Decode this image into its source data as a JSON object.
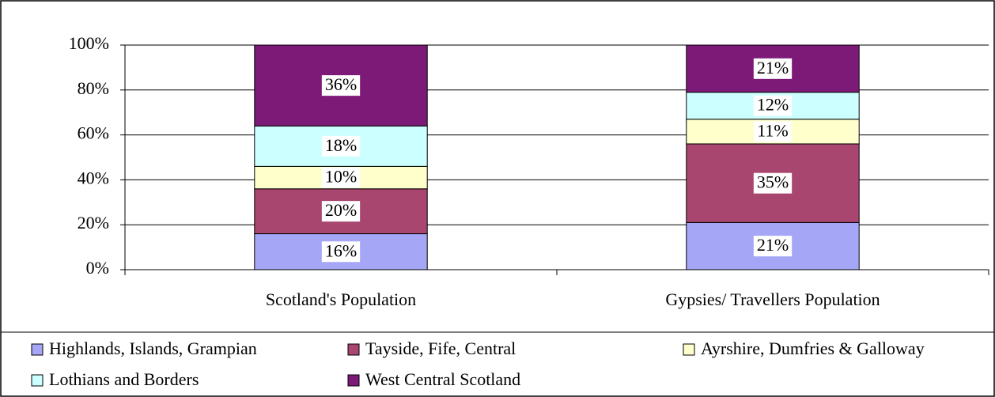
{
  "chart_data": {
    "type": "stacked_bar",
    "categories": [
      "Scotland's Population",
      "Gypsies/ Travellers Population"
    ],
    "series": [
      {
        "name": "Highlands, Islands, Grampian",
        "color": "#a6a6f7",
        "values": [
          16,
          21
        ],
        "value_labels": [
          "16%",
          "21%"
        ]
      },
      {
        "name": "Tayside, Fife, Central",
        "color": "#a84670",
        "values": [
          20,
          35
        ],
        "value_labels": [
          "20%",
          "35%"
        ]
      },
      {
        "name": "Ayrshire, Dumfries & Galloway",
        "color": "#ffffcc",
        "values": [
          10,
          11
        ],
        "value_labels": [
          "10%",
          "11%"
        ]
      },
      {
        "name": "Lothians and Borders",
        "color": "#ccffff",
        "values": [
          18,
          12
        ],
        "value_labels": [
          "18%",
          "12%"
        ]
      },
      {
        "name": "West Central Scotland",
        "color": "#7d1a78",
        "values": [
          36,
          21
        ],
        "value_labels": [
          "36%",
          "21%"
        ]
      }
    ],
    "ylim": [
      0,
      100
    ],
    "yticks": [
      {
        "value": 0,
        "label": "0%"
      },
      {
        "value": 20,
        "label": "20%"
      },
      {
        "value": 40,
        "label": "40%"
      },
      {
        "value": 60,
        "label": "60%"
      },
      {
        "value": 80,
        "label": "80%"
      },
      {
        "value": 100,
        "label": "100%"
      }
    ],
    "grid": true,
    "legend": "bottom"
  }
}
